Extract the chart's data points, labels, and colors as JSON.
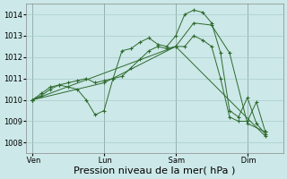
{
  "background_color": "#cce8e8",
  "grid_color": "#aacccc",
  "line_color": "#2d6a2d",
  "marker_color": "#2d6a2d",
  "xlabel": "Pression niveau de la mer( hPa )",
  "xlabel_fontsize": 8,
  "ylim": [
    1007.5,
    1014.5
  ],
  "yticks": [
    1008,
    1009,
    1010,
    1011,
    1012,
    1013,
    1014
  ],
  "day_labels": [
    " Ven",
    " Lun",
    " Sam",
    " Dim"
  ],
  "day_positions": [
    0,
    24,
    48,
    72
  ],
  "xlim": [
    -2,
    84
  ],
  "series": [
    {
      "x": [
        0,
        3,
        6,
        9,
        12,
        15,
        18,
        21,
        24,
        27,
        30,
        33,
        36,
        39,
        42,
        45,
        48,
        51,
        54,
        57,
        60,
        63,
        66,
        69,
        72,
        75,
        78
      ],
      "y": [
        1010.0,
        1010.2,
        1010.5,
        1010.7,
        1010.8,
        1010.9,
        1011.0,
        1010.8,
        1010.9,
        1011.0,
        1011.1,
        1011.5,
        1011.9,
        1012.3,
        1012.5,
        1012.4,
        1012.5,
        1012.5,
        1013.0,
        1012.8,
        1012.5,
        1011.0,
        1009.2,
        1009.0,
        1009.0,
        1009.9,
        1008.5
      ]
    },
    {
      "x": [
        0,
        3,
        6,
        9,
        12,
        15,
        18,
        21,
        24,
        27,
        30,
        33,
        36,
        39,
        42,
        45,
        48,
        51,
        54,
        57,
        60,
        63,
        66,
        69,
        72,
        75,
        78
      ],
      "y": [
        1010.0,
        1010.3,
        1010.6,
        1010.7,
        1010.6,
        1010.5,
        1010.0,
        1009.3,
        1009.5,
        1011.0,
        1012.3,
        1012.4,
        1012.7,
        1012.9,
        1012.6,
        1012.5,
        1013.0,
        1014.0,
        1014.2,
        1014.1,
        1013.6,
        1012.2,
        1009.5,
        1009.2,
        1010.1,
        1008.9,
        1008.4
      ]
    },
    {
      "x": [
        0,
        24,
        48,
        54,
        60,
        66,
        72,
        78
      ],
      "y": [
        1010.0,
        1010.8,
        1012.5,
        1013.6,
        1013.5,
        1012.2,
        1008.9,
        1008.5
      ]
    },
    {
      "x": [
        0,
        48,
        78
      ],
      "y": [
        1010.0,
        1012.5,
        1008.3
      ]
    }
  ],
  "tick_fontsize": 6,
  "ytick_fontsize": 6
}
